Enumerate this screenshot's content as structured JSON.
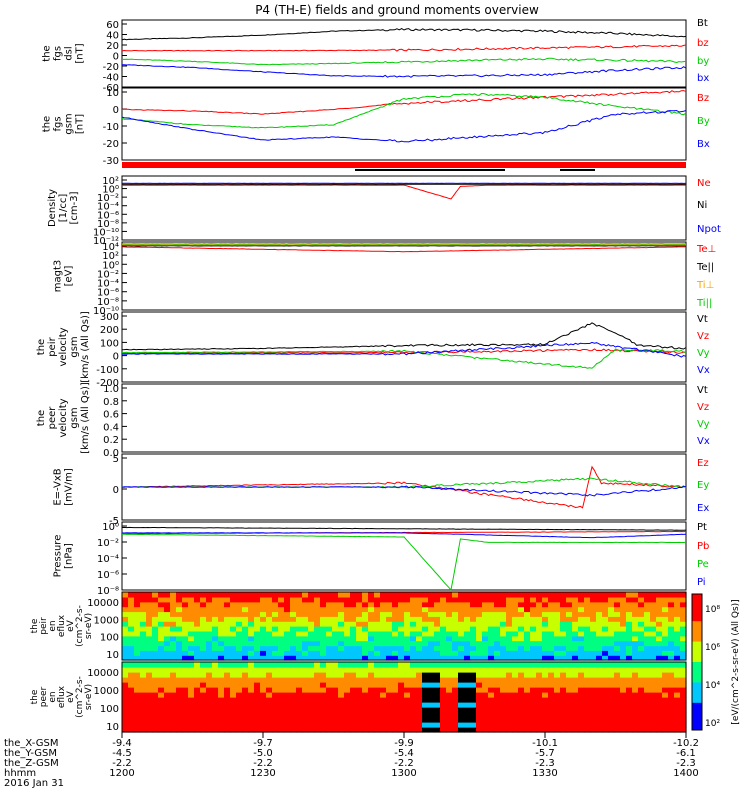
{
  "title": "P4 (TH-E) fields and ground moments overview",
  "chart_data": {
    "type": "line",
    "title": "P4 (TH-E) fields and ground moments overview",
    "time_axis": {
      "row_labels": [
        "the_X-GSM",
        "the_Y-GSM",
        "the_Z-GSM",
        "hhmm",
        "2016 Jan 31"
      ],
      "ticks": [
        {
          "x": "-9.4",
          "y": "-4.5",
          "z": "-2.2",
          "hhmm": "1200"
        },
        {
          "x": "-9.7",
          "y": "-5.0",
          "z": "-2.2",
          "hhmm": "1230"
        },
        {
          "x": "-9.9",
          "y": "-5.4",
          "z": "-2.2",
          "hhmm": "1300"
        },
        {
          "x": "-10.1",
          "y": "-5.7",
          "z": "-2.3",
          "hhmm": "1330"
        },
        {
          "x": "-10.2",
          "y": "-6.1",
          "z": "-2.3",
          "hhmm": "1400"
        }
      ],
      "range_minutes": [
        0,
        120
      ]
    },
    "panels": [
      {
        "id": "fgs-dsl",
        "ylabel": [
          "the",
          "fgs",
          "dsl",
          "[nT]"
        ],
        "ylim": [
          -60,
          60
        ],
        "yticks": [
          "60",
          "40",
          "20",
          "0",
          "-20",
          "-40",
          "-60"
        ],
        "series": [
          {
            "name": "Bt",
            "color": "#000000",
            "t": [
              0,
              15,
              30,
              45,
              60,
              75,
              90,
              105,
              120
            ],
            "values": [
              25,
              28,
              33,
              40,
              43,
              42,
              40,
              36,
              30
            ]
          },
          {
            "name": "bz",
            "color": "#ff0000",
            "t": [
              0,
              30,
              60,
              90,
              120
            ],
            "values": [
              5,
              5,
              6,
              10,
              14
            ]
          },
          {
            "name": "by",
            "color": "#00cc00",
            "t": [
              0,
              15,
              30,
              45,
              60,
              75,
              90,
              105,
              120
            ],
            "values": [
              -10,
              -14,
              -20,
              -18,
              -15,
              -12,
              -10,
              -12,
              -15
            ]
          },
          {
            "name": "bx",
            "color": "#0000ff",
            "t": [
              0,
              15,
              30,
              45,
              60,
              75,
              90,
              105,
              120
            ],
            "values": [
              -20,
              -25,
              -33,
              -40,
              -41,
              -40,
              -38,
              -30,
              -25
            ]
          }
        ]
      },
      {
        "id": "fgs-gsm",
        "ylabel": [
          "the",
          "fgs",
          "gsm",
          "[nT]"
        ],
        "ylim": [
          -35,
          12
        ],
        "yticks": [
          "10",
          "0",
          "-10",
          "-20",
          "-30"
        ],
        "series": [
          {
            "name": "Bz",
            "color": "#ff0000",
            "t": [
              0,
              15,
              30,
              45,
              60,
              75,
              90,
              105,
              120
            ],
            "values": [
              -2,
              -3,
              -5,
              -2,
              2,
              4,
              6,
              8,
              10
            ]
          },
          {
            "name": "By",
            "color": "#00cc00",
            "t": [
              0,
              15,
              30,
              45,
              60,
              75,
              90,
              105,
              120
            ],
            "values": [
              -8,
              -12,
              -14,
              -12,
              5,
              8,
              6,
              0,
              -5
            ]
          },
          {
            "name": "Bx",
            "color": "#0000ff",
            "t": [
              0,
              15,
              30,
              45,
              60,
              75,
              90,
              105,
              120
            ],
            "values": [
              -7,
              -15,
              -22,
              -20,
              -23,
              -20,
              -17,
              -5,
              -3
            ]
          }
        ]
      },
      {
        "id": "density",
        "ylabel": [
          "Density",
          "[1/cc]",
          "[cm-3]"
        ],
        "log": true,
        "ylim": [
          -12,
          2
        ],
        "yticks": [
          "10²",
          "10⁰",
          "10⁻²",
          "10⁻⁴",
          "10⁻⁶",
          "10⁻⁸",
          "10⁻¹⁰",
          "10⁻¹²"
        ],
        "series": [
          {
            "name": "Ne",
            "color": "#ff0000",
            "t": [
              0,
              60,
              70,
              72,
              78,
              85,
              120
            ],
            "values": [
              0,
              0,
              -3,
              -0.3,
              0,
              0,
              0
            ]
          },
          {
            "name": "Ni",
            "color": "#000000",
            "t": [
              0,
              120
            ],
            "values": [
              0.2,
              0.2
            ]
          },
          {
            "name": "Npot",
            "color": "#0000ff",
            "t": [
              0,
              120
            ],
            "values": [
              0.4,
              0.4
            ]
          }
        ]
      },
      {
        "id": "magt3",
        "ylabel": [
          "magt3",
          "[eV]"
        ],
        "log": true,
        "ylim": [
          -10,
          4
        ],
        "yticks": [
          "10⁴",
          "10²",
          "10⁰",
          "10⁻²",
          "10⁻⁴",
          "10⁻⁶",
          "10⁻⁸",
          "10⁻¹⁰"
        ],
        "series": [
          {
            "name": "Te⊥",
            "color": "#ff0000",
            "t": [
              0,
              60,
              120
            ],
            "values": [
              3,
              2,
              3
            ]
          },
          {
            "name": "Te||",
            "color": "#000000",
            "t": [
              0,
              120
            ],
            "values": [
              3.2,
              3.2
            ]
          },
          {
            "name": "Ti⊥",
            "color": "#ffa500",
            "t": [
              0,
              120
            ],
            "values": [
              3.4,
              3.4
            ]
          },
          {
            "name": "Ti||",
            "color": "#00cc00",
            "t": [
              0,
              120
            ],
            "values": [
              3.6,
              3.6
            ]
          }
        ]
      },
      {
        "id": "peir-velocity",
        "ylabel": [
          "the",
          "peir",
          "velocity",
          "gsm",
          "[km/s (All Qs)]"
        ],
        "ylim": [
          -200,
          300
        ],
        "yticks": [
          "300",
          "200",
          "100",
          "0",
          "-100",
          "-200"
        ],
        "series": [
          {
            "name": "Vt",
            "color": "#000000",
            "t": [
              0,
              30,
              60,
              90,
              100,
              105,
              110,
              120
            ],
            "values": [
              30,
              40,
              60,
              70,
              220,
              150,
              60,
              40
            ]
          },
          {
            "name": "Vz",
            "color": "#ff0000",
            "t": [
              0,
              60,
              100,
              120
            ],
            "values": [
              5,
              10,
              30,
              10
            ]
          },
          {
            "name": "Vy",
            "color": "#00cc00",
            "t": [
              0,
              60,
              100,
              105,
              120
            ],
            "values": [
              10,
              20,
              -100,
              30,
              20
            ]
          },
          {
            "name": "Vx",
            "color": "#0000ff",
            "t": [
              0,
              60,
              100,
              120
            ],
            "values": [
              0,
              0,
              80,
              -20
            ]
          }
        ]
      },
      {
        "id": "peer-velocity",
        "ylabel": [
          "the",
          "peer",
          "velocity",
          "gsm",
          "[km/s (All Qs)]"
        ],
        "ylim": [
          0,
          1
        ],
        "yticks": [
          "1.0",
          "0.8",
          "0.6",
          "0.4",
          "0.2",
          "0.0"
        ],
        "series": [
          {
            "name": "Vt",
            "color": "#000000",
            "values": []
          },
          {
            "name": "Vz",
            "color": "#ff0000",
            "values": []
          },
          {
            "name": "Vy",
            "color": "#00cc00",
            "values": []
          },
          {
            "name": "Vx",
            "color": "#0000ff",
            "values": []
          }
        ]
      },
      {
        "id": "efield",
        "ylabel": [
          "E=-VxB",
          "[mV/m]"
        ],
        "ylim": [
          -8,
          8
        ],
        "yticks": [
          "5",
          "0",
          "-5"
        ],
        "series": [
          {
            "name": "Ez",
            "color": "#ff0000",
            "t": [
              0,
              60,
              98,
              100,
              102,
              120
            ],
            "values": [
              0,
              1,
              -5,
              5,
              1,
              0
            ]
          },
          {
            "name": "Ey",
            "color": "#00cc00",
            "t": [
              0,
              60,
              100,
              120
            ],
            "values": [
              0,
              0,
              2,
              0
            ]
          },
          {
            "name": "Ex",
            "color": "#0000ff",
            "t": [
              0,
              60,
              100,
              120
            ],
            "values": [
              0,
              0,
              -2,
              0
            ]
          }
        ]
      },
      {
        "id": "pressure",
        "ylabel": [
          "Pressure",
          "[nPa]"
        ],
        "log": true,
        "ylim": [
          -9,
          1
        ],
        "yticks": [
          "10⁰",
          "10⁻²",
          "10⁻⁴",
          "10⁻⁶",
          "10⁻⁸"
        ],
        "series": [
          {
            "name": "Pt",
            "color": "#000000",
            "t": [
              0,
              60,
              120
            ],
            "values": [
              0.2,
              0,
              -0.2
            ]
          },
          {
            "name": "Pb",
            "color": "#ff0000",
            "t": [
              0,
              120
            ],
            "values": [
              -0.7,
              -0.4
            ]
          },
          {
            "name": "Pe",
            "color": "#00cc00",
            "t": [
              0,
              60,
              70,
              72,
              78,
              120
            ],
            "values": [
              -0.8,
              -1.2,
              -9,
              -1.5,
              -2,
              -2
            ]
          },
          {
            "name": "Pi",
            "color": "#0000ff",
            "t": [
              0,
              60,
              100,
              120
            ],
            "values": [
              -0.6,
              -0.6,
              -1.3,
              -0.8
            ]
          }
        ]
      }
    ],
    "spectrograms": [
      {
        "id": "peir-eflux",
        "ylabel": [
          "the",
          "peir",
          "en",
          "eflux",
          "eV",
          "(cm^2-s-",
          "sr-eV)"
        ],
        "ylim": [
          5,
          30000
        ],
        "yticks": [
          "10000",
          "1000",
          "100",
          "10"
        ]
      },
      {
        "id": "peer-eflux",
        "ylabel": [
          "the",
          "peer",
          "en",
          "eflux",
          "eV",
          "(cm^2-s-",
          "sr-eV)"
        ],
        "ylim": [
          5,
          30000
        ],
        "yticks": [
          "10000",
          "1000",
          "100",
          "10"
        ]
      }
    ],
    "colorbar": {
      "label": "[eV/(cm^2-s-sr-eV) (All Qs)]",
      "ticks": [
        "10⁸",
        "10⁶",
        "10⁴",
        "10²"
      ],
      "range_log": [
        1,
        9
      ]
    }
  }
}
